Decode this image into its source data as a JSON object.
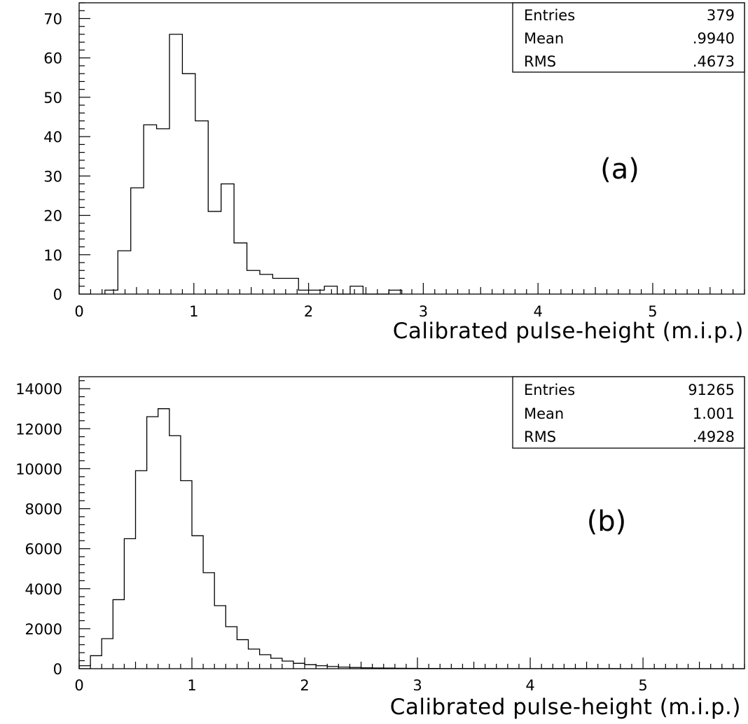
{
  "chart_data": [
    {
      "type": "bar",
      "panel_label": "(a)",
      "xlabel": "Calibrated pulse-height (m.i.p.)",
      "ylabel": "",
      "xlim": [
        0,
        5.8
      ],
      "ylim": [
        0,
        74
      ],
      "x_ticks": [
        "0",
        "1",
        "2",
        "3",
        "4",
        "5"
      ],
      "y_ticks": [
        "0",
        "10",
        "20",
        "30",
        "40",
        "50",
        "60",
        "70"
      ],
      "bin_width": 0.1125,
      "bin_start": 0.225,
      "values": [
        1,
        11,
        27,
        43,
        42,
        66,
        56,
        44,
        21,
        28,
        13,
        6,
        5,
        4,
        4,
        1,
        1,
        2,
        0,
        2,
        0,
        0,
        1
      ],
      "stats": [
        {
          "label": "Entries",
          "value": "379"
        },
        {
          "label": "Mean",
          "value": ".9940"
        },
        {
          "label": "RMS",
          "value": ".4673"
        }
      ],
      "grid": false
    },
    {
      "type": "bar",
      "panel_label": "(b)",
      "xlabel": "Calibrated  pulse-height (m.i.p.)",
      "ylabel": "",
      "xlim": [
        0,
        5.9
      ],
      "ylim": [
        0,
        14600
      ],
      "x_ticks": [
        "0",
        "1",
        "2",
        "3",
        "4",
        "5"
      ],
      "y_ticks": [
        "0",
        "2000",
        "4000",
        "6000",
        "8000",
        "10000",
        "12000",
        "14000"
      ],
      "bin_width": 0.1,
      "bin_start": 0.0,
      "values": [
        150,
        650,
        1500,
        3450,
        6500,
        9900,
        12600,
        13000,
        11650,
        9400,
        6650,
        4800,
        3150,
        2100,
        1450,
        980,
        700,
        520,
        380,
        270,
        200,
        150,
        110,
        80,
        60,
        45,
        35,
        28,
        22,
        18,
        14,
        12,
        10,
        9,
        8,
        7,
        6,
        5,
        5,
        4,
        4,
        3,
        3,
        3,
        2,
        2,
        2,
        2,
        1,
        1,
        1,
        1,
        1,
        1,
        1,
        1,
        1,
        1,
        1
      ],
      "stats": [
        {
          "label": "Entries",
          "value": "91265"
        },
        {
          "label": "Mean",
          "value": "1.001"
        },
        {
          "label": "RMS",
          "value": ".4928"
        }
      ],
      "grid": false
    }
  ]
}
